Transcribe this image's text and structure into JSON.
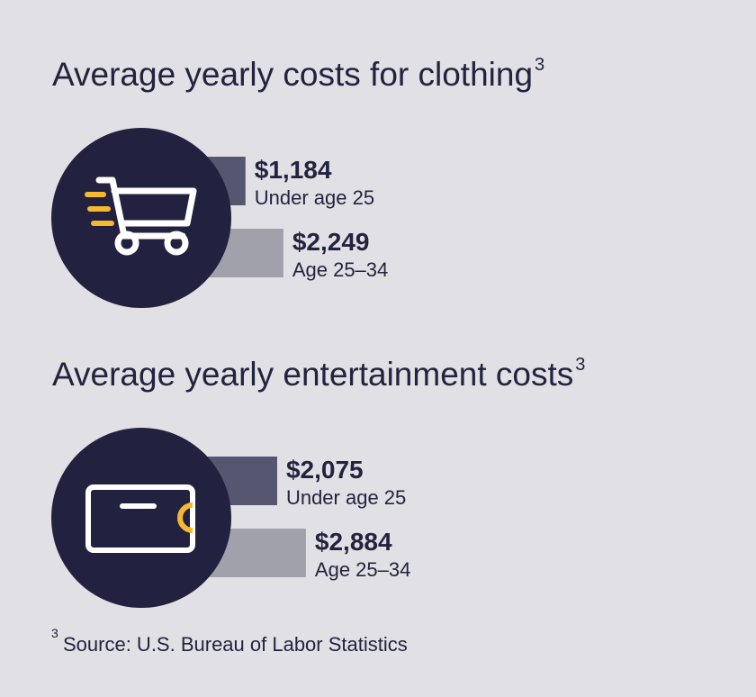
{
  "chart_data": [
    {
      "type": "bar",
      "title": "Average yearly costs for clothing",
      "title_superscript": "3",
      "categories": [
        "Under age 25",
        "Age 25–34"
      ],
      "values": [
        1184,
        2249
      ],
      "value_labels": [
        "$1,184",
        "$2,249"
      ],
      "colors": [
        "#555670",
        "#a0a1ab"
      ]
    },
    {
      "type": "bar",
      "title": "Average yearly entertainment costs",
      "title_superscript": "3",
      "categories": [
        "Under age 25",
        "Age 25–34"
      ],
      "values": [
        2075,
        2884
      ],
      "value_labels": [
        "$2,075",
        "$2,884"
      ],
      "colors": [
        "#555670",
        "#a0a1ab"
      ]
    }
  ],
  "footnote_mark": "3",
  "footnote": "Source: U.S. Bureau of Labor Statistics"
}
